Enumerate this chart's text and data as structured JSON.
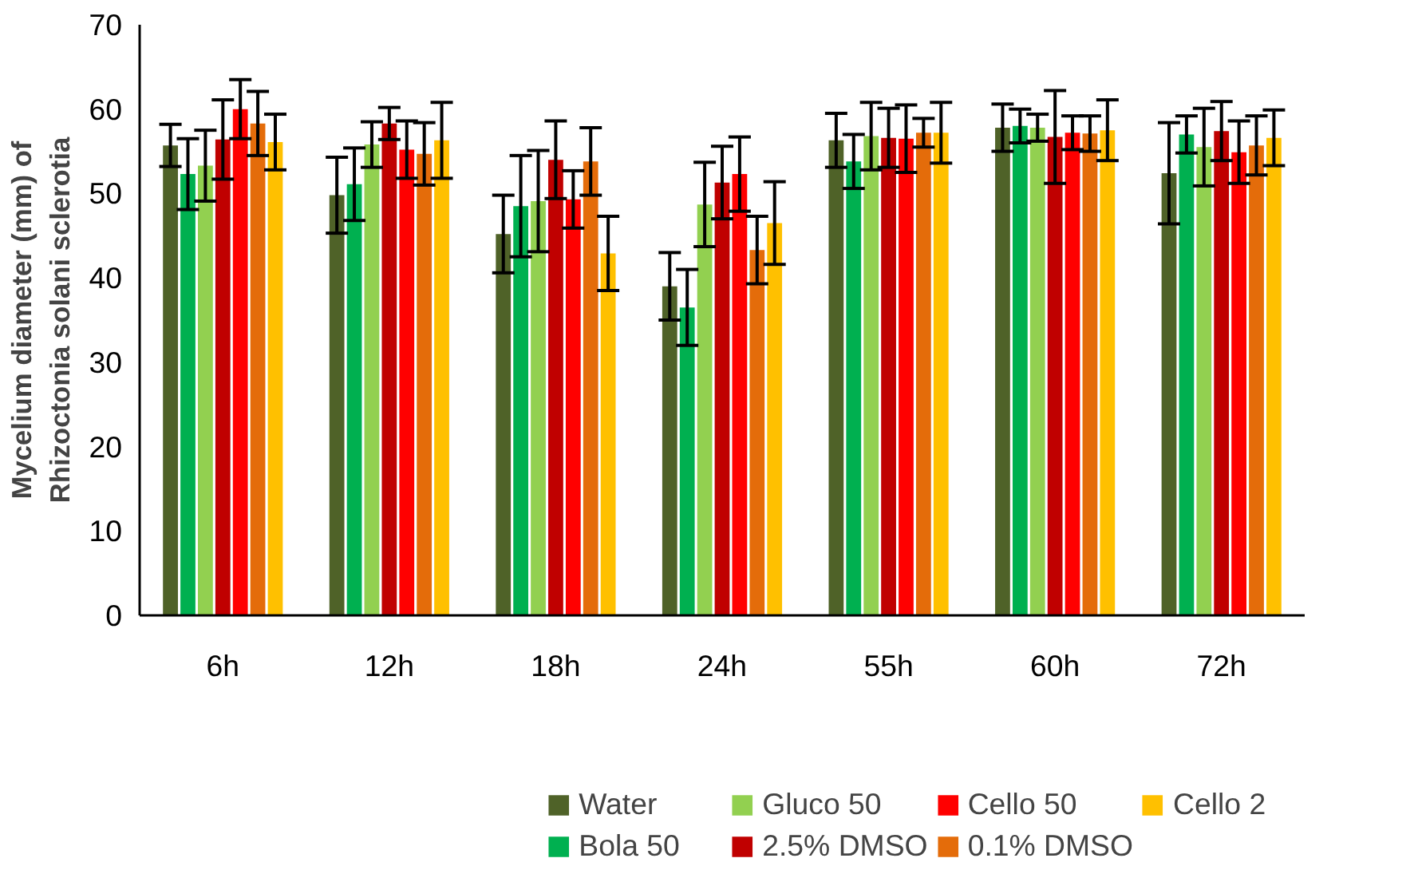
{
  "chart_data": {
    "type": "bar",
    "ylabel": "Mycelium diameter (mm) of Rhizoctonia solani sclerotia",
    "categories": [
      "6h",
      "12h",
      "18h",
      "24h",
      "55h",
      "60h",
      "72h"
    ],
    "ylim": [
      0,
      70
    ],
    "yticks": [
      0,
      10,
      20,
      30,
      40,
      50,
      60,
      70
    ],
    "grid": false,
    "legend": "bottom",
    "series": [
      {
        "name": "Water",
        "color": "#4f6228",
        "values": [
          55.7,
          49.8,
          45.2,
          39.0,
          56.3,
          57.8,
          52.4
        ],
        "errors": [
          2.5,
          4.5,
          4.6,
          4.0,
          3.2,
          2.8,
          6.0
        ]
      },
      {
        "name": "Bola 50",
        "color": "#00b050",
        "values": [
          52.3,
          51.1,
          48.5,
          36.5,
          53.8,
          58.0,
          57.0
        ],
        "errors": [
          4.2,
          4.3,
          6.0,
          4.5,
          3.2,
          2.0,
          2.2
        ]
      },
      {
        "name": "Gluco 50",
        "color": "#92d050",
        "values": [
          53.3,
          55.8,
          49.1,
          48.7,
          56.8,
          57.8,
          55.5
        ],
        "errors": [
          4.2,
          2.7,
          6.0,
          5.0,
          4.0,
          1.6,
          4.6
        ]
      },
      {
        "name": "2.5% DMSO",
        "color": "#c00000",
        "values": [
          56.4,
          58.3,
          54.0,
          51.3,
          56.6,
          56.7,
          57.4
        ],
        "errors": [
          4.7,
          1.9,
          4.6,
          4.3,
          3.5,
          5.5,
          3.5
        ]
      },
      {
        "name": "Cello 50",
        "color": "#ff0000",
        "values": [
          60.0,
          55.2,
          49.3,
          52.3,
          56.5,
          57.2,
          54.9
        ],
        "errors": [
          3.5,
          3.4,
          3.4,
          4.4,
          4.0,
          2.0,
          3.7
        ]
      },
      {
        "name": "0.1% DMSO",
        "color": "#e46c0a",
        "values": [
          58.3,
          54.7,
          53.8,
          43.3,
          57.2,
          57.1,
          55.7
        ],
        "errors": [
          3.8,
          3.7,
          4.0,
          4.0,
          1.7,
          2.1,
          3.5
        ]
      },
      {
        "name": "Cello 2",
        "color": "#ffc000",
        "values": [
          56.1,
          56.3,
          42.9,
          46.5,
          57.2,
          57.5,
          56.6
        ],
        "errors": [
          3.3,
          4.5,
          4.4,
          4.9,
          3.6,
          3.6,
          3.3
        ]
      }
    ]
  }
}
